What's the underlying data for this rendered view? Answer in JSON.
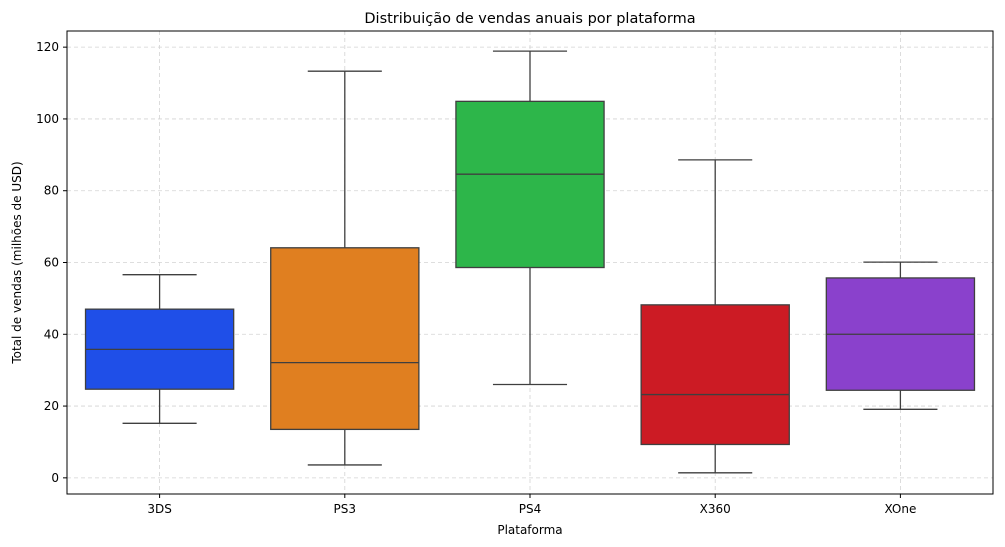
{
  "chart_data": {
    "type": "box",
    "title": "Distribuição de vendas anuais por plataforma",
    "xlabel": "Plataforma",
    "ylabel": "Total de vendas (milhões de USD)",
    "ylim": [
      -4.5,
      124.5
    ],
    "yticks": [
      0,
      20,
      40,
      60,
      80,
      100,
      120
    ],
    "grid": true,
    "legend": "none",
    "categories": [
      "3DS",
      "PS3",
      "PS4",
      "X360",
      "XOne"
    ],
    "colors": [
      "#1f4fe8",
      "#e07f20",
      "#2db64a",
      "#cc1b24",
      "#8a41cc"
    ],
    "edge_color": "#3f3f3f",
    "boxes": [
      {
        "category": "3DS",
        "whisker_low": 15.2,
        "q1": 24.7,
        "median": 35.8,
        "q3": 47.0,
        "whisker_high": 56.6
      },
      {
        "category": "PS3",
        "whisker_low": 3.6,
        "q1": 13.5,
        "median": 32.1,
        "q3": 64.1,
        "whisker_high": 113.3
      },
      {
        "category": "PS4",
        "whisker_low": 26.0,
        "q1": 58.6,
        "median": 84.6,
        "q3": 104.9,
        "whisker_high": 118.9
      },
      {
        "category": "X360",
        "whisker_low": 1.4,
        "q1": 9.3,
        "median": 23.2,
        "q3": 48.2,
        "whisker_high": 88.6
      },
      {
        "category": "XOne",
        "whisker_low": 19.1,
        "q1": 24.4,
        "median": 40.0,
        "q3": 55.7,
        "whisker_high": 60.1
      }
    ]
  }
}
